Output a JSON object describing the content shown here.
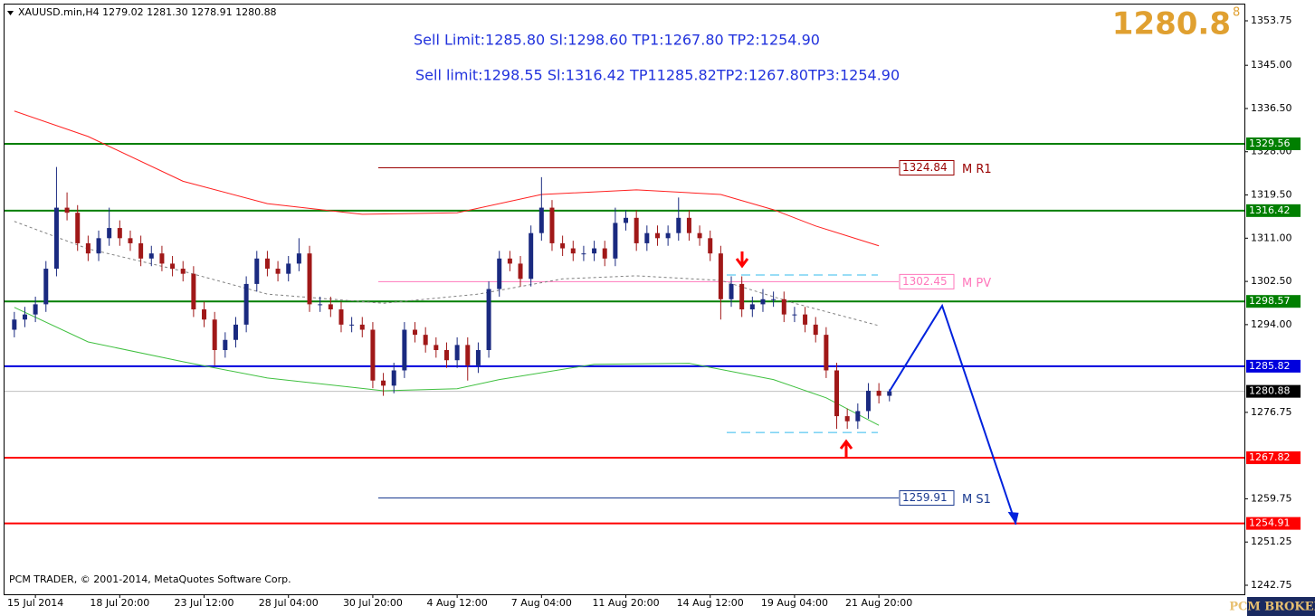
{
  "chart_data": {
    "type": "candlestick",
    "title": "XAUUSD.min,H4  1279.02 1281.30 1278.91 1280.88",
    "annotations": [
      "Sell Limit:1285.80 Sl:1298.60 TP1:1267.80 TP2:1254.90",
      "Sell limit:1298.55 Sl:1316.42 TP11285.82TP2:1267.80TP3:1254.90"
    ],
    "big_price": {
      "main": "1280.8",
      "sup": "8"
    },
    "copyright": "PCM TRADER, © 2001-2014, MetaQuotes Software Corp.",
    "logo": "PCM BROKERS",
    "ylim": [
      1240.97,
      1356.95
    ],
    "yticks": [
      1353.75,
      {
        "value": 1345,
        "label": "1345.00"
      },
      {
        "value": 1336.5,
        "label": "1336.50"
      },
      {
        "value": 1328,
        "label": "1328.00"
      },
      {
        "value": 1319.5,
        "label": "1319.50"
      },
      {
        "value": 1311,
        "label": "1311.00"
      },
      {
        "value": 1302.5,
        "label": "1302.50"
      },
      {
        "value": 1294,
        "label": "1294.00"
      },
      1276.75,
      1259.75,
      1251.25,
      1242.75
    ],
    "xticks": [
      {
        "value": 2,
        "label": "15 Jul 2014"
      },
      {
        "value": 10,
        "label": "18 Jul 20:00"
      },
      {
        "value": 18,
        "label": "23 Jul 12:00"
      },
      {
        "value": 26,
        "label": "28 Jul 04:00"
      },
      {
        "value": 34,
        "label": "30 Jul 20:00"
      },
      {
        "value": 42,
        "label": "4 Aug 12:00"
      },
      {
        "value": 50,
        "label": "7 Aug 04:00"
      },
      {
        "value": 58,
        "label": "11 Aug 20:00"
      },
      {
        "value": 66,
        "label": "14 Aug 12:00"
      },
      {
        "value": 74,
        "label": "19 Aug 04:00"
      },
      {
        "value": 82,
        "label": "21 Aug 20:00"
      }
    ],
    "bull_color": "#1a2a80",
    "bear_color": "#a01818",
    "open": [
      1293,
      1295,
      1296,
      1298,
      1305,
      1317,
      1316,
      1310,
      1308,
      1311,
      1313,
      1311,
      1310,
      1307,
      1308,
      1306,
      1305,
      1304,
      1297,
      1295,
      1289,
      1291,
      1294,
      1302,
      1307,
      1305,
      1304,
      1306,
      1308,
      1298,
      1298,
      1297,
      1294,
      1294,
      1293,
      1283,
      1282,
      1285,
      1293,
      1292,
      1290,
      1289,
      1287,
      1290,
      1286,
      1289,
      1301,
      1307,
      1306,
      1303,
      1312,
      1317,
      1310,
      1309,
      1308,
      1308,
      1309,
      1307,
      1314,
      1315,
      1310,
      1312,
      1311,
      1312,
      1315,
      1312,
      1311,
      1308,
      1299,
      1302,
      1297,
      1298,
      1299,
      1299,
      1296,
      1296,
      1294,
      1292,
      1285,
      1276,
      1275,
      1277,
      1281,
      1280
    ],
    "high": [
      1296.5,
      1297.5,
      1299.5,
      1306.5,
      1325,
      1320,
      1317.5,
      1311.5,
      1312.5,
      1317,
      1314.5,
      1312.5,
      1311.5,
      1309.5,
      1309.5,
      1307.5,
      1306.5,
      1305.5,
      1298.5,
      1296.5,
      1292.5,
      1295.5,
      1303.5,
      1308.5,
      1308.5,
      1306.5,
      1307.5,
      1311,
      1309.5,
      1299.5,
      1299.5,
      1298.5,
      1295.5,
      1295.5,
      1294.5,
      1284.5,
      1286.5,
      1294.5,
      1294.5,
      1293.5,
      1291.5,
      1290.5,
      1291.5,
      1291.5,
      1290.5,
      1302.5,
      1308.5,
      1308.5,
      1307.5,
      1313.5,
      1323,
      1318.5,
      1311.5,
      1310.5,
      1309.5,
      1310.5,
      1310.5,
      1317,
      1316.5,
      1316.5,
      1313.5,
      1313.5,
      1313.5,
      1319,
      1316.5,
      1313.5,
      1312.5,
      1309.5,
      1303.5,
      1303.5,
      1299.5,
      1301,
      1300.5,
      1300.5,
      1297.5,
      1297.5,
      1295.5,
      1293.5,
      1286.5,
      1277.5,
      1278.5,
      1282.5,
      1282.5,
      1281.3
    ],
    "low": [
      1291.5,
      1293.5,
      1294.5,
      1296.5,
      1303.5,
      1314.5,
      1308.5,
      1306.5,
      1306.5,
      1309.5,
      1309.5,
      1308.5,
      1305.5,
      1305.5,
      1304.5,
      1303.5,
      1302.5,
      1295.5,
      1293.5,
      1286,
      1287.5,
      1289.5,
      1292.5,
      1300.5,
      1303.5,
      1302.5,
      1302.5,
      1304.5,
      1296.5,
      1296.5,
      1295.5,
      1292.5,
      1292.5,
      1291.5,
      1281.5,
      1280,
      1280.5,
      1283.5,
      1290.5,
      1288.5,
      1287.5,
      1285.5,
      1285.5,
      1283,
      1284.5,
      1287.5,
      1299.5,
      1304.5,
      1301.5,
      1301.5,
      1310.5,
      1308.5,
      1307.5,
      1306.5,
      1306.5,
      1306.5,
      1305.5,
      1305.5,
      1312.5,
      1308.5,
      1308.5,
      1309.5,
      1309.5,
      1310.5,
      1310.5,
      1309.5,
      1306.5,
      1295,
      1297.5,
      1295.5,
      1295.5,
      1296.5,
      1297.5,
      1294.5,
      1294.5,
      1292.5,
      1290.5,
      1283.5,
      1273.5,
      1273.5,
      1273.5,
      1275.5,
      1278.5,
      1278.91
    ],
    "close": [
      1295,
      1296,
      1298,
      1305,
      1317,
      1316,
      1310,
      1308,
      1311,
      1313,
      1311,
      1310,
      1307,
      1308,
      1306,
      1305,
      1304,
      1297,
      1295,
      1289,
      1291,
      1294,
      1302,
      1307,
      1305,
      1304,
      1306,
      1308,
      1298,
      1298,
      1297,
      1294,
      1294,
      1293,
      1283,
      1282,
      1285,
      1293,
      1292,
      1290,
      1289,
      1287,
      1290,
      1286,
      1289,
      1301,
      1307,
      1306,
      1303,
      1312,
      1317,
      1310,
      1309,
      1308,
      1308,
      1309,
      1307,
      1314,
      1315,
      1310,
      1312,
      1311,
      1312,
      1315,
      1312,
      1311,
      1308,
      1299,
      1302,
      1297,
      1298,
      1299,
      1299,
      1296,
      1296,
      1294,
      1292,
      1285,
      1276,
      1275,
      1277,
      1281,
      1280,
      1280.88
    ],
    "series": [
      {
        "color": "#ff2020",
        "x": [
          0,
          7,
          16,
          24,
          33,
          42,
          50,
          59,
          67,
          72,
          76,
          82
        ],
        "values": [
          1336,
          1331,
          1322.2,
          1317.8,
          1315.7,
          1316,
          1319.6,
          1320.5,
          1319.6,
          1316.6,
          1313.4,
          1309.5
        ]
      },
      {
        "color": "#40c040",
        "x": [
          0,
          7,
          16,
          24,
          35,
          42,
          46,
          55,
          64,
          72,
          77,
          82
        ],
        "values": [
          1297.4,
          1290.6,
          1286.7,
          1283.5,
          1281,
          1281.4,
          1283.2,
          1286.2,
          1286.4,
          1283.2,
          1279.6,
          1274.2
        ]
      },
      {
        "color": "#808080",
        "dashed": true,
        "x": [
          0,
          7,
          16,
          24,
          35,
          44,
          52,
          59,
          67,
          74,
          82
        ],
        "values": [
          1314.3,
          1308.9,
          1304.5,
          1300,
          1298.2,
          1300,
          1303,
          1303.6,
          1302.7,
          1298.2,
          1293.8
        ]
      }
    ],
    "levels": [
      {
        "value": 1329.56,
        "color": "#007f00"
      },
      {
        "value": 1316.42,
        "color": "#007f00"
      },
      {
        "value": 1298.57,
        "color": "#007f00"
      },
      {
        "value": 1285.82,
        "color": "#0000dd"
      },
      {
        "value": 1280.88,
        "color": "#c0c0c0",
        "label_bg": "#000000"
      },
      {
        "value": 1267.82,
        "color": "#ff0000"
      },
      {
        "value": 1254.91,
        "color": "#ff0000"
      }
    ],
    "pivots": [
      {
        "value": 1324.84,
        "label": "M R1",
        "color": "#990000"
      },
      {
        "value": 1302.45,
        "label": "M PV",
        "color": "#ff77bb"
      },
      {
        "value": 1259.91,
        "label": "M S1",
        "color": "#1a3a90"
      }
    ],
    "zone_lines": {
      "color": "#33bbee",
      "values": [
        1303.76,
        1272.8
      ]
    },
    "projection": {
      "color": "#0022dd",
      "x": [
        83,
        88,
        95
      ],
      "values": [
        1280.88,
        1297.7,
        1254.7
      ]
    }
  }
}
